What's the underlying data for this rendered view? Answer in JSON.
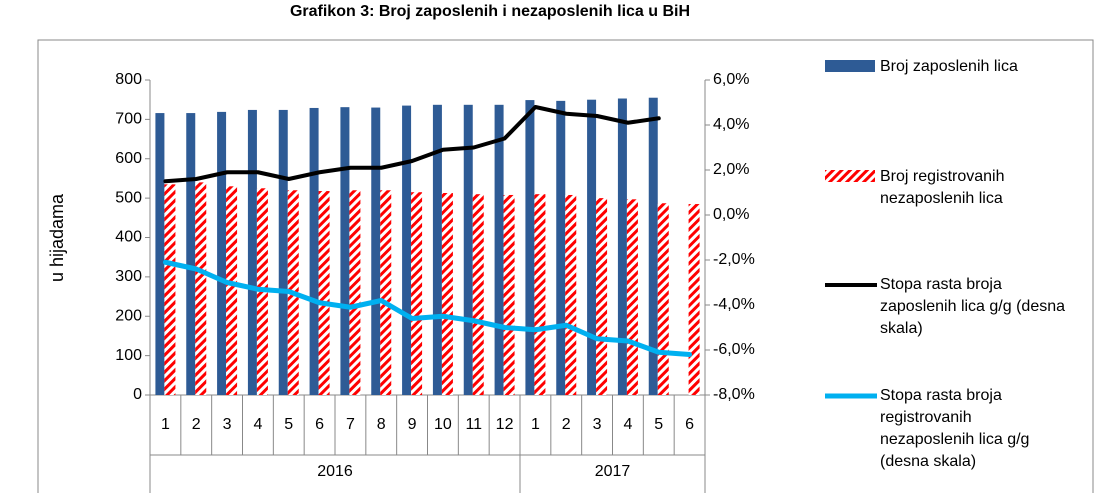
{
  "chart_data": {
    "type": "bar_line",
    "title": "Grafikon 3: Broj zaposlenih i nezaposlenih lica u BiH",
    "ylabel": "u hijadama",
    "categories": [
      "1",
      "2",
      "3",
      "4",
      "5",
      "6",
      "7",
      "8",
      "9",
      "10",
      "11",
      "12",
      "1",
      "2",
      "3",
      "4",
      "5",
      "6"
    ],
    "category_groups": [
      {
        "name": "2016",
        "size": 12
      },
      {
        "name": "2017",
        "size": 6
      }
    ],
    "ylim": [
      0,
      800
    ],
    "yticks": [
      0,
      100,
      200,
      300,
      400,
      500,
      600,
      700,
      800
    ],
    "y2lim": [
      -8,
      6
    ],
    "y2ticks": [
      {
        "value": -8,
        "label": "-8,0%"
      },
      {
        "value": -6,
        "label": "-6,0%"
      },
      {
        "value": -4,
        "label": "-4,0%"
      },
      {
        "value": -2,
        "label": "-2,0%"
      },
      {
        "value": 0,
        "label": "0,0%"
      },
      {
        "value": 2,
        "label": "2,0%"
      },
      {
        "value": 4,
        "label": "4,0%"
      },
      {
        "value": 6,
        "label": "6,0%"
      }
    ],
    "series": [
      {
        "name": "Broj zaposlenih lica",
        "kind": "bar",
        "color": "#2e5b95",
        "values": [
          716,
          716,
          719,
          724,
          724,
          729,
          731,
          730,
          735,
          737,
          737,
          737,
          749,
          747,
          750,
          753,
          755,
          null
        ]
      },
      {
        "name": "Broj registrovanih nezaposlenih lica",
        "kind": "bar",
        "color": "#ff0000",
        "hatch": true,
        "values": [
          535,
          540,
          530,
          525,
          520,
          518,
          520,
          520,
          515,
          513,
          510,
          508,
          510,
          508,
          500,
          497,
          487,
          485
        ]
      },
      {
        "name": "Stopa rasta broja zaposlenih lica g/g (desna skala)",
        "kind": "line",
        "axis": "y2",
        "color": "#000000",
        "values": [
          1.5,
          1.6,
          1.9,
          1.9,
          1.6,
          1.9,
          2.1,
          2.1,
          2.4,
          2.9,
          3.0,
          3.4,
          4.8,
          4.5,
          4.4,
          4.1,
          4.3,
          null
        ]
      },
      {
        "name": "Stopa rasta broja registrovanih nezaposlenih lica g/g (desna skala)",
        "kind": "line",
        "axis": "y2",
        "color": "#00b0f0",
        "values": [
          -2.1,
          -2.4,
          -3.0,
          -3.3,
          -3.4,
          -3.9,
          -4.1,
          -3.8,
          -4.6,
          -4.5,
          -4.7,
          -5.0,
          -5.1,
          -4.9,
          -5.5,
          -5.6,
          -6.1,
          -6.2
        ]
      }
    ]
  }
}
